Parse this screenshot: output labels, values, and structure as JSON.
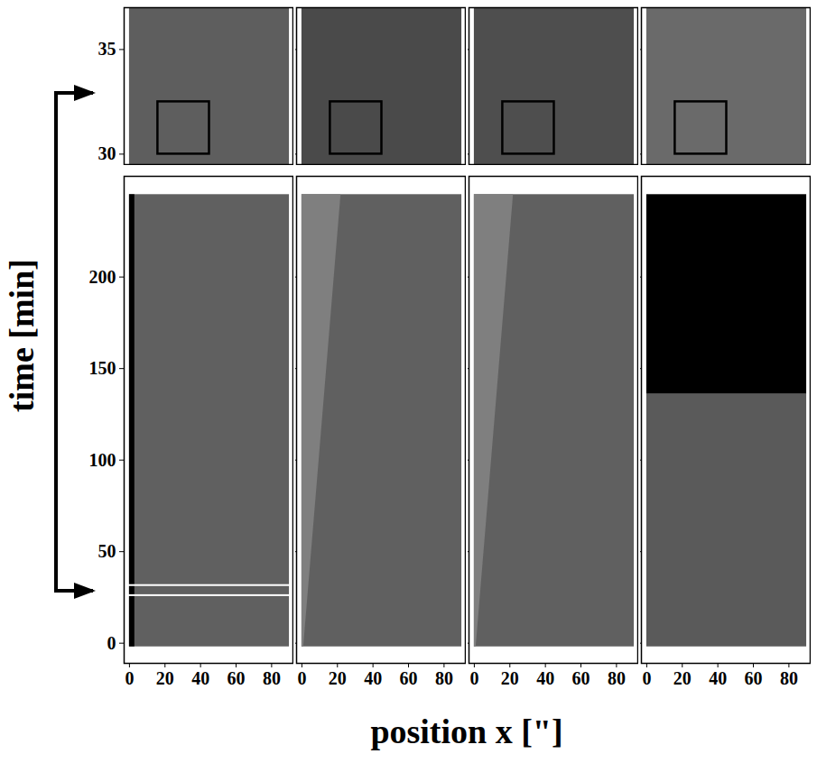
{
  "chart_data": {
    "type": "image_panels",
    "xlabel": "position x [\"]",
    "ylabel": "time [min]",
    "xlim": [
      -3,
      92
    ],
    "xticks": [
      0,
      20,
      40,
      60,
      80
    ],
    "rows": [
      {
        "ylim": [
          29.5,
          37
        ],
        "yticks": [
          30,
          35
        ],
        "tick_labels": "y",
        "panels": [
          {
            "regions": [
              {
                "x": [
                  0,
                  90
                ],
                "t": [
                  29.5,
                  37
                ],
                "color": "#5e5e5e"
              }
            ],
            "box": {
              "x": [
                16,
                45
              ],
              "t": [
                30,
                32.5
              ]
            }
          },
          {
            "regions": [
              {
                "x": [
                  0,
                  90
                ],
                "t": [
                  29.5,
                  37
                ],
                "color": "#4a4a4a"
              }
            ],
            "box": {
              "x": [
                16,
                45
              ],
              "t": [
                30,
                32.5
              ]
            }
          },
          {
            "regions": [
              {
                "x": [
                  0,
                  90
                ],
                "t": [
                  29.5,
                  37
                ],
                "color": "#4e4e4e"
              }
            ],
            "box": {
              "x": [
                16,
                45
              ],
              "t": [
                30,
                32.5
              ]
            }
          },
          {
            "regions": [
              {
                "x": [
                  0,
                  90
                ],
                "t": [
                  29.5,
                  37
                ],
                "color": "#6a6a6a"
              }
            ],
            "box": {
              "x": [
                16,
                45
              ],
              "t": [
                30,
                32.5
              ]
            }
          }
        ]
      },
      {
        "ylim": [
          -11,
          255
        ],
        "yticks": [
          0,
          50,
          100,
          150,
          200
        ],
        "panels": [
          {
            "regions": [
              {
                "x": [
                  0,
                  90
                ],
                "t": [
                  -2,
                  245
                ],
                "color": "#606060"
              },
              {
                "x": [
                  0,
                  3
                ],
                "t": [
                  -2,
                  245
                ],
                "color": "#000000"
              }
            ],
            "highlight": {
              "x": [
                -1,
                91
              ],
              "t": [
                26,
                31.5
              ]
            }
          },
          {
            "regions": [
              {
                "x": [
                  0,
                  90
                ],
                "t": [
                  -2,
                  245
                ],
                "color": "#606060"
              }
            ],
            "wedge": {
              "color": "#7f7f7f",
              "points": [
                {
                  "t": -2,
                  "x_from": 0,
                  "x_to": 1
                },
                {
                  "t": 245,
                  "x_from": 0,
                  "x_to": 22
                }
              ]
            }
          },
          {
            "regions": [
              {
                "x": [
                  0,
                  90
                ],
                "t": [
                  -2,
                  245
                ],
                "color": "#606060"
              }
            ],
            "wedge": {
              "color": "#7f7f7f",
              "points": [
                {
                  "t": -2,
                  "x_from": 0,
                  "x_to": 1
                },
                {
                  "t": 245,
                  "x_from": 0,
                  "x_to": 22
                }
              ]
            }
          },
          {
            "regions": [
              {
                "x": [
                  0,
                  90
                ],
                "t": [
                  -2,
                  136
                ],
                "color": "#5a5a5a"
              },
              {
                "x": [
                  0,
                  90
                ],
                "t": [
                  136,
                  245
                ],
                "color": "#000000"
              }
            ]
          }
        ]
      }
    ]
  }
}
